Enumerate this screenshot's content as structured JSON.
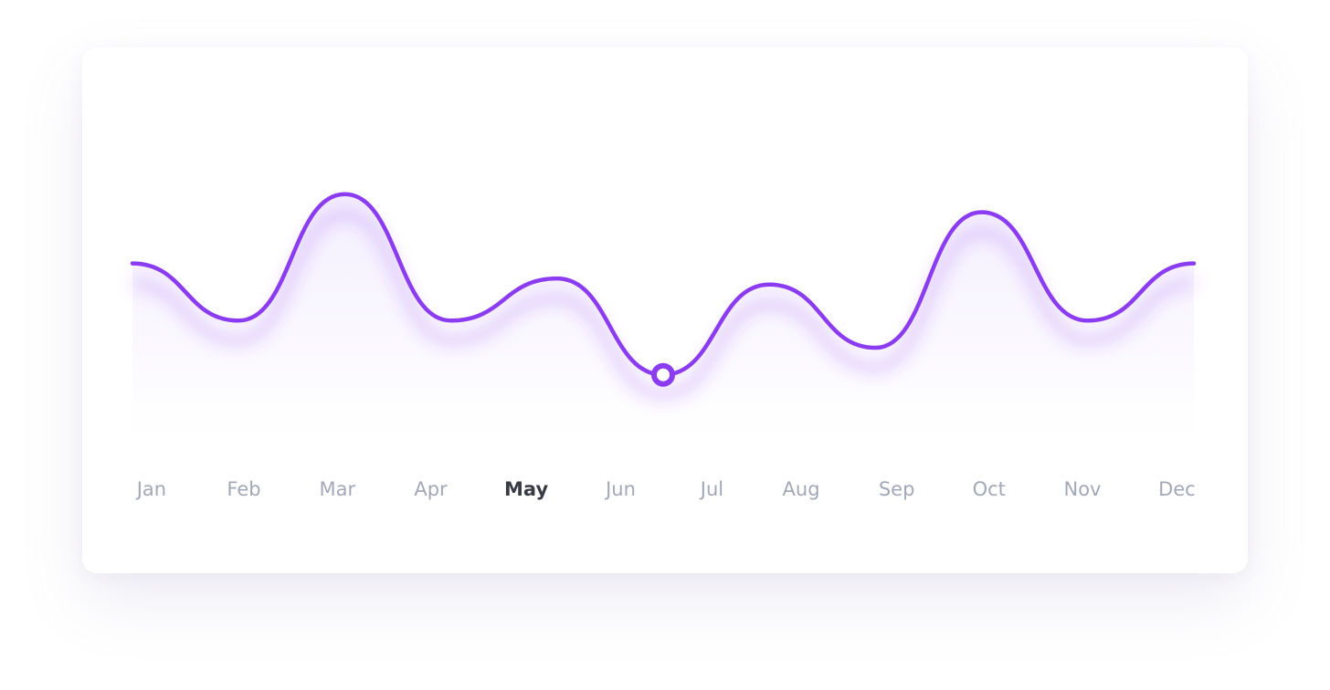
{
  "chart_data": {
    "type": "line",
    "x": [
      0,
      1,
      2,
      3,
      4,
      5,
      6,
      7,
      8,
      9,
      10
    ],
    "xlim": [
      0,
      10
    ],
    "xticks": [
      {
        "value": 0.18,
        "label": "Jan"
      },
      {
        "value": 1.05,
        "label": "Feb"
      },
      {
        "value": 1.93,
        "label": "Mar"
      },
      {
        "value": 2.81,
        "label": "Apr"
      },
      {
        "value": 3.71,
        "label": "May"
      },
      {
        "value": 4.6,
        "label": "Jun"
      },
      {
        "value": 5.46,
        "label": "Jul"
      },
      {
        "value": 6.3,
        "label": "Aug"
      },
      {
        "value": 7.2,
        "label": "Sep"
      },
      {
        "value": 8.07,
        "label": "Oct"
      },
      {
        "value": 8.95,
        "label": "Nov"
      },
      {
        "value": 9.84,
        "label": "Dec"
      }
    ],
    "ylim": [
      0,
      100
    ],
    "series": [
      {
        "color": "#8b3cf0",
        "values": [
          58,
          39,
          81,
          39,
          53,
          21,
          51,
          30,
          75,
          39,
          58
        ]
      }
    ],
    "marker_index": 5,
    "active_tick": 4
  }
}
